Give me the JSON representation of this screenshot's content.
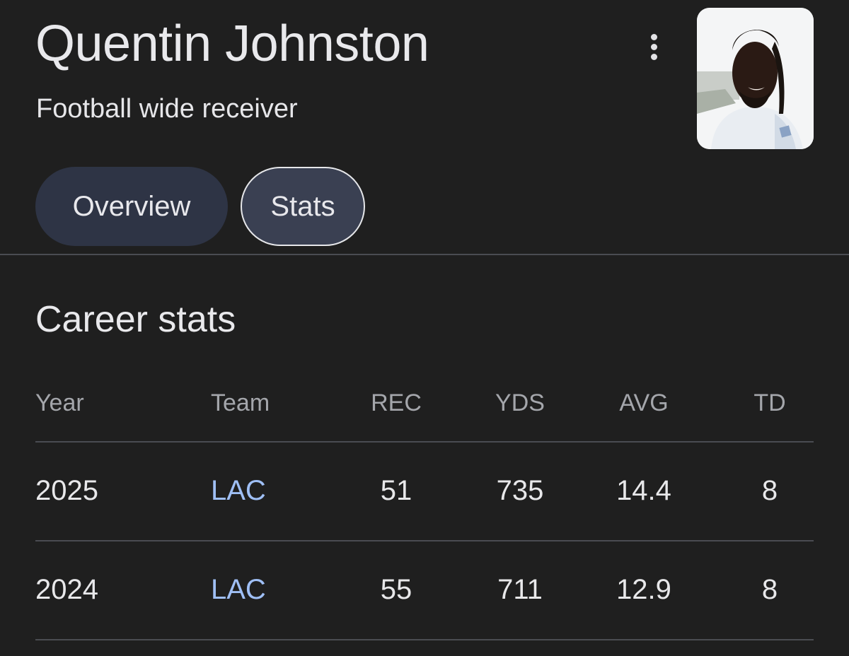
{
  "profile": {
    "name": "Quentin Johnston",
    "description": "Football wide receiver",
    "more_icon": "more-vert-icon",
    "avatar_icon": "player-photo"
  },
  "tabs": [
    {
      "label": "Overview",
      "selected": false
    },
    {
      "label": "Stats",
      "selected": true
    }
  ],
  "stats": {
    "section_title": "Career stats",
    "columns": [
      "Year",
      "Team",
      "REC",
      "YDS",
      "AVG",
      "TD"
    ],
    "rows": [
      {
        "year": "2025",
        "team": "LAC",
        "rec": "51",
        "yds": "735",
        "avg": "14.4",
        "td": "8"
      },
      {
        "year": "2024",
        "team": "LAC",
        "rec": "55",
        "yds": "711",
        "avg": "12.9",
        "td": "8"
      }
    ]
  },
  "colors": {
    "background": "#1f1f1f",
    "link": "#9fbff5",
    "chip_unselected": "#2e3445",
    "chip_selected": "#3a4052"
  }
}
